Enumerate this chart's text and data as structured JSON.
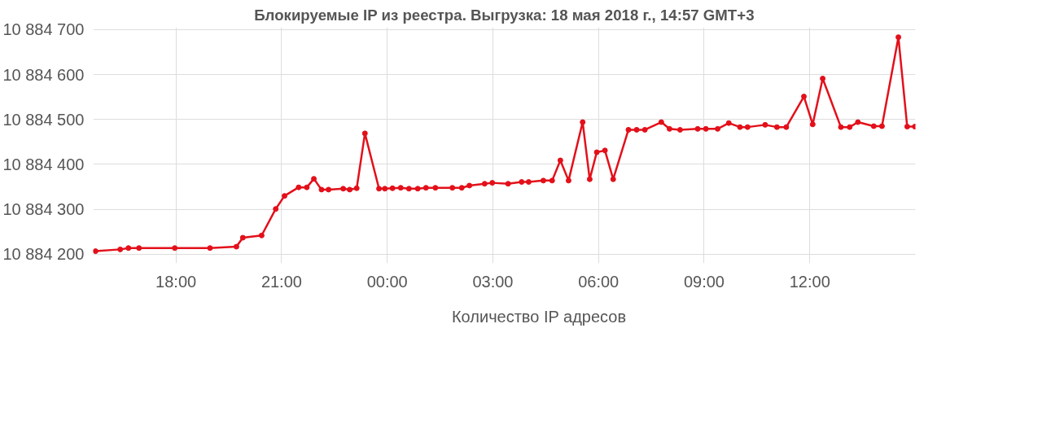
{
  "chart_data": {
    "type": "line",
    "title": "Блокируемые IP из реестра. Выгрузка: 18 мая 2018 г., 14:57 GMT+3",
    "x": [
      "2018-05-17T15:43",
      "2018-05-17T16:25",
      "2018-05-17T16:39",
      "2018-05-17T16:57",
      "2018-05-17T17:58",
      "2018-05-17T18:58",
      "2018-05-17T19:43",
      "2018-05-17T19:54",
      "2018-05-17T20:26",
      "2018-05-17T20:50",
      "2018-05-17T21:05",
      "2018-05-17T21:29",
      "2018-05-17T21:43",
      "2018-05-17T21:55",
      "2018-05-17T22:08",
      "2018-05-17T22:20",
      "2018-05-17T22:45",
      "2018-05-17T22:56",
      "2018-05-17T23:08",
      "2018-05-17T23:22",
      "2018-05-17T23:46",
      "2018-05-17T23:56",
      "2018-05-18T00:09",
      "2018-05-18T00:23",
      "2018-05-18T00:37",
      "2018-05-18T00:52",
      "2018-05-18T01:06",
      "2018-05-18T01:22",
      "2018-05-18T01:51",
      "2018-05-18T02:07",
      "2018-05-18T02:20",
      "2018-05-18T02:46",
      "2018-05-18T02:59",
      "2018-05-18T03:26",
      "2018-05-18T03:49",
      "2018-05-18T04:01",
      "2018-05-18T04:26",
      "2018-05-18T04:41",
      "2018-05-18T04:55",
      "2018-05-18T05:09",
      "2018-05-18T05:33",
      "2018-05-18T05:45",
      "2018-05-18T05:57",
      "2018-05-18T06:11",
      "2018-05-18T06:25",
      "2018-05-18T06:51",
      "2018-05-18T07:05",
      "2018-05-18T07:19",
      "2018-05-18T07:47",
      "2018-05-18T08:01",
      "2018-05-18T08:19",
      "2018-05-18T08:49",
      "2018-05-18T09:03",
      "2018-05-18T09:23",
      "2018-05-18T09:42",
      "2018-05-18T10:01",
      "2018-05-18T10:14",
      "2018-05-18T10:44",
      "2018-05-18T11:04",
      "2018-05-18T11:20",
      "2018-05-18T11:50",
      "2018-05-18T12:05",
      "2018-05-18T12:22",
      "2018-05-18T12:53",
      "2018-05-18T13:08",
      "2018-05-18T13:22",
      "2018-05-18T13:49",
      "2018-05-18T14:03",
      "2018-05-18T14:31",
      "2018-05-18T14:46",
      "2018-05-18T14:59"
    ],
    "series": [
      {
        "name": "Количество IP адресов",
        "color": "#e3101a",
        "values": [
          10884207,
          10884211,
          10884214,
          10884214,
          10884214,
          10884214,
          10884217,
          10884237,
          10884242,
          10884301,
          10884330,
          10884349,
          10884349,
          10884368,
          10884344,
          10884344,
          10884346,
          10884344,
          10884347,
          10884469,
          10884346,
          10884346,
          10884347,
          10884348,
          10884346,
          10884346,
          10884348,
          10884348,
          10884348,
          10884348,
          10884353,
          10884357,
          10884359,
          10884357,
          10884361,
          10884361,
          10884364,
          10884364,
          10884409,
          10884364,
          10884494,
          10884367,
          10884427,
          10884431,
          10884367,
          10884477,
          10884477,
          10884477,
          10884494,
          10884479,
          10884477,
          10884479,
          10884479,
          10884479,
          10884492,
          10884483,
          10884483,
          10884488,
          10884483,
          10884483,
          10884551,
          10884489,
          10884591,
          10884483,
          10884483,
          10884494,
          10884485,
          10884485,
          10884683,
          10884484,
          10884484
        ]
      }
    ],
    "xlim": [
      "2018-05-17T15:39",
      "2018-05-18T15:00"
    ],
    "xticks": [
      {
        "value": "2018-05-17T18:00",
        "label": "18:00"
      },
      {
        "value": "2018-05-17T21:00",
        "label": "21:00"
      },
      {
        "value": "2018-05-18T00:00",
        "label": "00:00"
      },
      {
        "value": "2018-05-18T03:00",
        "label": "03:00"
      },
      {
        "value": "2018-05-18T06:00",
        "label": "06:00"
      },
      {
        "value": "2018-05-18T09:00",
        "label": "09:00"
      },
      {
        "value": "2018-05-18T12:00",
        "label": "12:00"
      }
    ],
    "ylim": [
      10884180,
      10884705
    ],
    "yticks": [
      {
        "value": 10884200,
        "label": "10 884 200"
      },
      {
        "value": 10884300,
        "label": "10 884 300"
      },
      {
        "value": 10884400,
        "label": "10 884 400"
      },
      {
        "value": 10884500,
        "label": "10 884 500"
      },
      {
        "value": 10884600,
        "label": "10 884 600"
      },
      {
        "value": 10884700,
        "label": "10 884 700"
      }
    ],
    "grid": true,
    "legend": "bottom",
    "marker": "circle",
    "line_style": "solid"
  }
}
